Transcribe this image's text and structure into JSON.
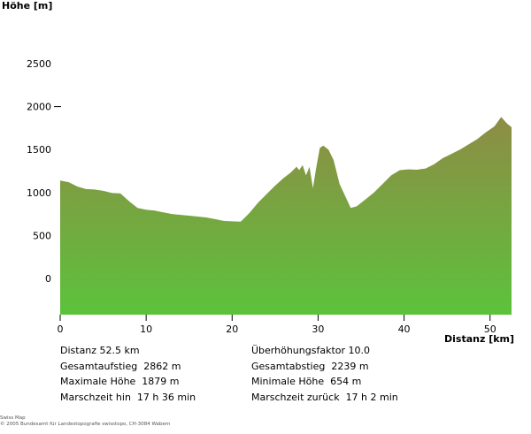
{
  "chart_data": {
    "type": "area",
    "ylabel": "Höhe [m]",
    "xlabel": "Distanz [km]",
    "xlim": [
      0,
      52.5
    ],
    "ylim": [
      -400,
      2800
    ],
    "x_ticks": [
      0,
      10,
      20,
      30,
      40,
      50
    ],
    "y_ticks": [
      0,
      500,
      1000,
      1500,
      2000,
      2500
    ],
    "colors": {
      "fill_top": "#8e8c45",
      "fill_bottom": "#5cc23c"
    },
    "profile": [
      [
        0,
        1140
      ],
      [
        1,
        1120
      ],
      [
        2,
        1070
      ],
      [
        3,
        1040
      ],
      [
        4,
        1035
      ],
      [
        5,
        1020
      ],
      [
        6,
        995
      ],
      [
        7,
        990
      ],
      [
        8,
        900
      ],
      [
        9,
        820
      ],
      [
        10,
        800
      ],
      [
        11,
        790
      ],
      [
        12,
        770
      ],
      [
        13,
        750
      ],
      [
        14,
        740
      ],
      [
        15,
        730
      ],
      [
        16,
        720
      ],
      [
        17,
        710
      ],
      [
        18,
        690
      ],
      [
        19,
        670
      ],
      [
        20,
        665
      ],
      [
        21,
        660
      ],
      [
        22,
        760
      ],
      [
        23,
        880
      ],
      [
        24,
        980
      ],
      [
        25,
        1080
      ],
      [
        26,
        1170
      ],
      [
        26.8,
        1230
      ],
      [
        27.5,
        1300
      ],
      [
        27.8,
        1260
      ],
      [
        28.2,
        1320
      ],
      [
        28.6,
        1200
      ],
      [
        29,
        1300
      ],
      [
        29.4,
        1050
      ],
      [
        29.8,
        1300
      ],
      [
        30.2,
        1520
      ],
      [
        30.6,
        1545
      ],
      [
        31.2,
        1500
      ],
      [
        31.8,
        1380
      ],
      [
        32.5,
        1100
      ],
      [
        33.2,
        950
      ],
      [
        33.8,
        820
      ],
      [
        34.5,
        840
      ],
      [
        35.5,
        920
      ],
      [
        36.5,
        1000
      ],
      [
        37.5,
        1100
      ],
      [
        38.5,
        1200
      ],
      [
        39.5,
        1260
      ],
      [
        40.5,
        1270
      ],
      [
        41.5,
        1265
      ],
      [
        42.5,
        1280
      ],
      [
        43.5,
        1330
      ],
      [
        44.5,
        1400
      ],
      [
        45.5,
        1450
      ],
      [
        46.5,
        1500
      ],
      [
        47.5,
        1560
      ],
      [
        48.5,
        1620
      ],
      [
        49.5,
        1700
      ],
      [
        50.5,
        1770
      ],
      [
        51.3,
        1879
      ],
      [
        52,
        1800
      ],
      [
        52.5,
        1760
      ]
    ]
  },
  "stats_left": [
    "Distanz 52.5 km",
    "Gesamtaufstieg  2862 m",
    "Maximale Höhe  1879 m",
    "Marschzeit hin  17 h 36 min"
  ],
  "stats_right": [
    "Überhöhungsfaktor 10.0",
    "Gesamtabstieg  2239 m",
    "Minimale Höhe  654 m",
    "Marschzeit zurück  17 h 2 min"
  ],
  "footer": {
    "line1": "Swiss Map",
    "line2": "© 2005 Bundesamt für Landestopografie swisstopo, CH-3084 Wabern"
  }
}
